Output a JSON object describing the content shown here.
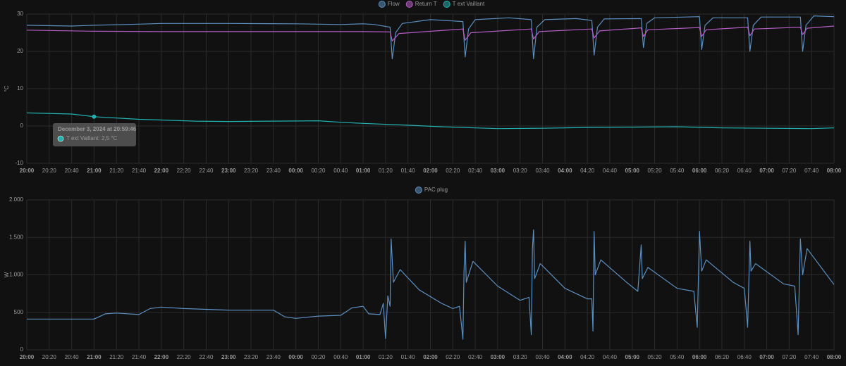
{
  "chart_data": [
    {
      "type": "line",
      "ylabel": "°C",
      "xlim": [
        "20:00",
        "08:00"
      ],
      "ylim": [
        -10,
        30
      ],
      "yticks": [
        -10,
        0,
        10,
        20,
        30
      ],
      "grid": true,
      "xticks": [
        "20:00",
        "20:20",
        "20:40",
        "21:00",
        "21:20",
        "21:40",
        "22:00",
        "22:20",
        "22:40",
        "23:00",
        "23:20",
        "23:40",
        "00:00",
        "00:20",
        "00:40",
        "01:00",
        "01:20",
        "01:40",
        "02:00",
        "02:20",
        "02:40",
        "03:00",
        "03:20",
        "03:40",
        "04:00",
        "04:20",
        "04:40",
        "05:00",
        "05:20",
        "05:40",
        "06:00",
        "06:20",
        "06:40",
        "07:00",
        "07:20",
        "07:40",
        "08:00"
      ],
      "series": [
        {
          "name": "Flow",
          "color": "#5b8fc0",
          "x": [
            "20:00",
            "20:40",
            "21:00",
            "21:40",
            "22:00",
            "23:00",
            "00:00",
            "00:40",
            "01:00",
            "01:10",
            "01:24",
            "01:26",
            "01:29",
            "01:35",
            "02:00",
            "02:29",
            "02:31",
            "02:34",
            "02:40",
            "03:10",
            "03:30",
            "03:32",
            "03:35",
            "03:42",
            "04:10",
            "04:24",
            "04:26",
            "04:29",
            "04:35",
            "05:08",
            "05:10",
            "05:13",
            "05:20",
            "06:00",
            "06:02",
            "06:05",
            "06:12",
            "06:43",
            "06:45",
            "06:48",
            "06:55",
            "07:30",
            "07:32",
            "07:35",
            "07:42",
            "08:00"
          ],
          "values": [
            27,
            26.8,
            27,
            27.3,
            27.5,
            27.5,
            27.4,
            27.2,
            27.4,
            27.2,
            26.5,
            18,
            25,
            27.5,
            28.5,
            28,
            18.5,
            26,
            28.5,
            29,
            28.5,
            18,
            26.5,
            28.5,
            28.8,
            28.3,
            19,
            26.5,
            28.7,
            28.8,
            21,
            27.5,
            29,
            29.3,
            20.5,
            27,
            29,
            29,
            20,
            27,
            29.2,
            29.2,
            20,
            27,
            29.5,
            29.3
          ]
        },
        {
          "name": "Return T",
          "color": "#b45cc4",
          "x": [
            "20:00",
            "21:00",
            "22:00",
            "01:00",
            "01:24",
            "01:26",
            "01:32",
            "02:29",
            "02:31",
            "02:36",
            "03:30",
            "03:32",
            "03:37",
            "04:24",
            "04:26",
            "04:31",
            "05:08",
            "05:10",
            "05:14",
            "06:00",
            "06:02",
            "06:06",
            "06:43",
            "06:45",
            "06:49",
            "07:30",
            "07:32",
            "07:36",
            "08:00"
          ],
          "values": [
            25.7,
            25.4,
            25.3,
            25.3,
            25.2,
            22.8,
            24.8,
            26,
            23,
            25,
            26,
            23.3,
            25.3,
            26,
            23.6,
            25.5,
            26.3,
            24,
            25.8,
            26.4,
            24,
            25.8,
            26.5,
            24.2,
            26,
            26.5,
            24.5,
            26.2,
            26.8
          ]
        },
        {
          "name": "T ext Vaillant",
          "color": "#21b3b0",
          "x": [
            "20:00",
            "20:40",
            "21:00",
            "21:40",
            "22:00",
            "22:30",
            "23:00",
            "23:40",
            "00:20",
            "00:40",
            "01:00",
            "01:40",
            "02:10",
            "02:40",
            "03:00",
            "03:40",
            "04:20",
            "05:00",
            "05:40",
            "06:20",
            "07:00",
            "07:40",
            "08:00"
          ],
          "values": [
            3.5,
            3.2,
            2.5,
            1.8,
            1.6,
            1.3,
            1.2,
            1.3,
            1.4,
            1.0,
            0.7,
            0.2,
            -0.2,
            -0.5,
            -0.7,
            -0.6,
            -0.4,
            -0.3,
            -0.2,
            -0.5,
            -0.6,
            -0.7,
            -0.5
          ]
        }
      ],
      "tooltip": {
        "title": "December 3, 2024 at 20:59:46",
        "text": "T ext Vaillant: 2,5 °C"
      }
    },
    {
      "type": "line",
      "ylabel": "W",
      "xlim": [
        "20:00",
        "08:00"
      ],
      "ylim": [
        0,
        2000
      ],
      "grid": true,
      "yticks": [
        0,
        500,
        {
          "value": 1000,
          "label": "1.000"
        },
        {
          "value": 1500,
          "label": "1.500"
        },
        {
          "value": 2000,
          "label": "2.000"
        }
      ],
      "xticks": [
        "20:00",
        "20:20",
        "20:40",
        "21:00",
        "21:20",
        "21:40",
        "22:00",
        "22:20",
        "22:40",
        "23:00",
        "23:20",
        "23:40",
        "00:00",
        "00:20",
        "00:40",
        "01:00",
        "01:20",
        "01:40",
        "02:00",
        "02:20",
        "02:40",
        "03:00",
        "03:20",
        "03:40",
        "04:00",
        "04:20",
        "04:40",
        "05:00",
        "05:20",
        "05:40",
        "06:00",
        "06:20",
        "06:40",
        "07:00",
        "07:20",
        "07:40",
        "08:00"
      ],
      "series": [
        {
          "name": "PAC plug",
          "color": "#5b8fc0",
          "x": [
            "20:00",
            "21:00",
            "21:10",
            "21:20",
            "21:40",
            "21:50",
            "22:00",
            "22:20",
            "23:00",
            "23:40",
            "23:50",
            "00:00",
            "00:20",
            "00:40",
            "00:50",
            "01:00",
            "01:05",
            "01:15",
            "01:18",
            "01:20",
            "01:22",
            "01:24",
            "01:25",
            "01:27",
            "01:33",
            "01:50",
            "02:10",
            "02:20",
            "02:26",
            "02:29",
            "02:30",
            "02:31",
            "02:32",
            "02:38",
            "03:00",
            "03:20",
            "03:28",
            "03:30",
            "03:31",
            "03:32",
            "03:33",
            "03:38",
            "04:00",
            "04:20",
            "04:24",
            "04:25",
            "04:26",
            "04:27",
            "04:32",
            "04:55",
            "05:05",
            "05:08",
            "05:09",
            "05:14",
            "05:40",
            "05:55",
            "05:58",
            "06:00",
            "06:02",
            "06:06",
            "06:30",
            "06:40",
            "06:43",
            "06:45",
            "06:46",
            "06:50",
            "07:15",
            "07:25",
            "07:28",
            "07:30",
            "07:32",
            "07:36",
            "08:00"
          ],
          "values": [
            410,
            410,
            480,
            490,
            470,
            550,
            570,
            550,
            530,
            530,
            440,
            420,
            450,
            460,
            560,
            580,
            480,
            470,
            620,
            150,
            720,
            580,
            1480,
            900,
            1070,
            800,
            620,
            550,
            580,
            140,
            1050,
            1450,
            900,
            1180,
            850,
            660,
            700,
            200,
            1350,
            1600,
            950,
            1150,
            820,
            680,
            680,
            250,
            1580,
            1000,
            1200,
            900,
            780,
            1400,
            950,
            1100,
            820,
            780,
            300,
            1580,
            1050,
            1200,
            900,
            820,
            300,
            1450,
            1050,
            1150,
            880,
            850,
            200,
            1480,
            1000,
            1350,
            870
          ]
        }
      ]
    }
  ]
}
